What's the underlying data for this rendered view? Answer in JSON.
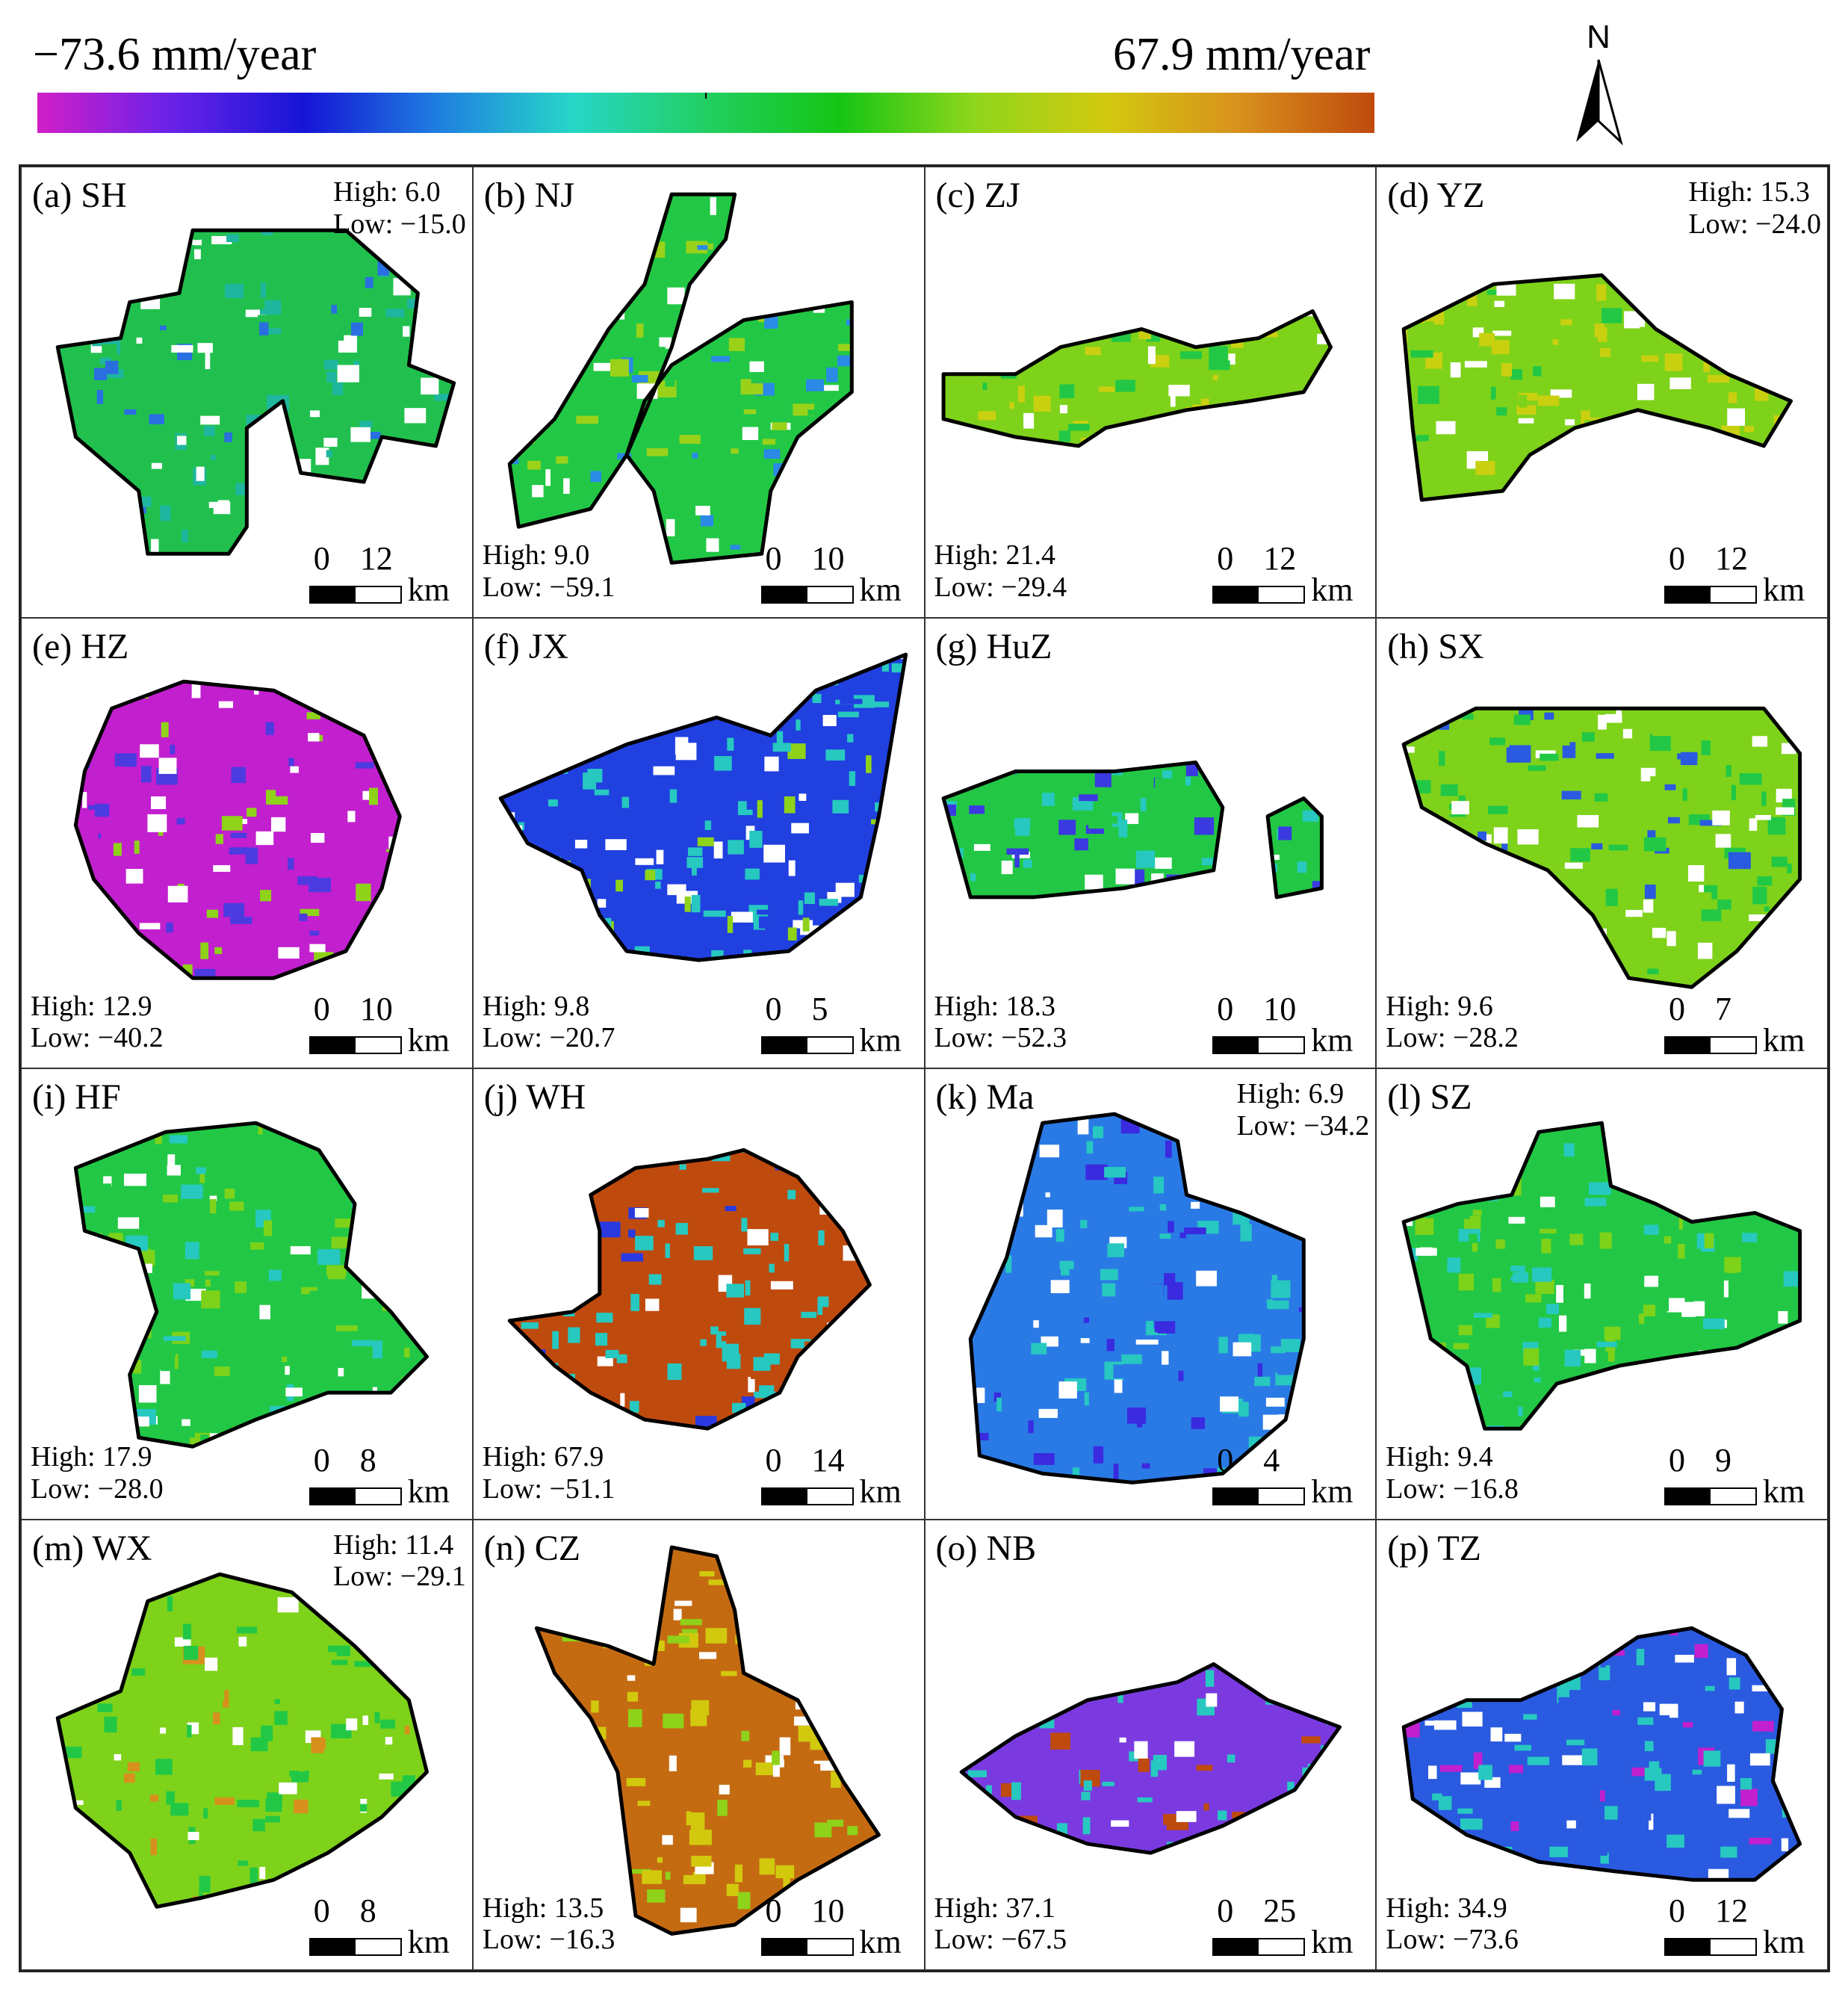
{
  "legend": {
    "min_label": "−73.6 mm/year",
    "max_label": "67.9 mm/year",
    "min_value": -73.6,
    "max_value": 67.9,
    "colors": [
      "#d01fc7",
      "#6a22e8",
      "#1515d6",
      "#1f7fe0",
      "#27d6c8",
      "#22cf63",
      "#15c515",
      "#8ed61c",
      "#d2c90f",
      "#d8901d",
      "#bf4a0d"
    ]
  },
  "north": {
    "label": "N"
  },
  "scale_unit": "km",
  "panels": [
    {
      "label": "(a) SH",
      "high": "High: 6.0",
      "low": "Low: −15.0",
      "scale": "12",
      "stats_pos": "tr",
      "colors": [
        "#21c04e",
        "#1fb6a0",
        "#2a6fe0"
      ]
    },
    {
      "label": "(b) NJ",
      "high": "High: 9.0",
      "low": "Low: −59.1",
      "scale": "10",
      "stats_pos": "bl",
      "colors": [
        "#22c845",
        "#9ad21a",
        "#2a8ae6"
      ]
    },
    {
      "label": "(c) ZJ",
      "high": "High: 21.4",
      "low": "Low: −29.4",
      "scale": "12",
      "stats_pos": "bl",
      "colors": [
        "#7ed21a",
        "#c9d010",
        "#22c845"
      ]
    },
    {
      "label": "(d) YZ",
      "high": "High: 15.3",
      "low": "Low: −24.0",
      "scale": "12",
      "stats_pos": "tr",
      "colors": [
        "#7ed21a",
        "#c9d010",
        "#22c845"
      ]
    },
    {
      "label": "(e) HZ",
      "high": "High: 12.9",
      "low": "Low: −40.2",
      "scale": "10",
      "stats_pos": "bl",
      "colors": [
        "#c21fcf",
        "#4c3be0",
        "#8ed21a"
      ]
    },
    {
      "label": "(f) JX",
      "high": "High: 9.8",
      "low": "Low: −20.7",
      "scale": "5",
      "stats_pos": "bl",
      "colors": [
        "#2140e0",
        "#27c8c0",
        "#8ed21a"
      ]
    },
    {
      "label": "(g) HuZ",
      "high": "High: 18.3",
      "low": "Low: −52.3",
      "scale": "10",
      "stats_pos": "bl",
      "colors": [
        "#22c845",
        "#27c8c0",
        "#3a3ae0"
      ]
    },
    {
      "label": "(h) SX",
      "high": "High: 9.6",
      "low": "Low: −28.2",
      "scale": "7",
      "stats_pos": "bl",
      "colors": [
        "#7ed21a",
        "#22c845",
        "#2a5ae0"
      ]
    },
    {
      "label": "(i) HF",
      "high": "High: 17.9",
      "low": "Low: −28.0",
      "scale": "8",
      "stats_pos": "bl",
      "colors": [
        "#22c845",
        "#7ed21a",
        "#27c8c0"
      ]
    },
    {
      "label": "(j) WH",
      "high": "High: 67.9",
      "low": "Low: −51.1",
      "scale": "14",
      "stats_pos": "bl",
      "colors": [
        "#bf4a0d",
        "#27c8c0",
        "#2a3ae0"
      ]
    },
    {
      "label": "(k) Ma",
      "high": "High: 6.9",
      "low": "Low: −34.2",
      "scale": "4",
      "stats_pos": "tr",
      "colors": [
        "#2a7ae6",
        "#27c8c0",
        "#3a2ae0"
      ]
    },
    {
      "label": "(l) SZ",
      "high": "High: 9.4",
      "low": "Low: −16.8",
      "scale": "9",
      "stats_pos": "bl",
      "colors": [
        "#22c845",
        "#27c8c0",
        "#7ed21a"
      ]
    },
    {
      "label": "(m) WX",
      "high": "High: 11.4",
      "low": "Low: −29.1",
      "scale": "8",
      "stats_pos": "tr",
      "colors": [
        "#7ed21a",
        "#22c845",
        "#d8901d"
      ]
    },
    {
      "label": "(n) CZ",
      "high": "High: 13.5",
      "low": "Low: −16.3",
      "scale": "10",
      "stats_pos": "bl",
      "colors": [
        "#c46b12",
        "#d2c90f",
        "#8ed21a"
      ]
    },
    {
      "label": "(o) NB",
      "high": "High: 37.1",
      "low": "Low: −67.5",
      "scale": "25",
      "stats_pos": "bl",
      "colors": [
        "#7a3ae0",
        "#27c8c0",
        "#bf4a0d"
      ]
    },
    {
      "label": "(p) TZ",
      "high": "High: 34.9",
      "low": "Low: −73.6",
      "scale": "12",
      "stats_pos": "bl",
      "colors": [
        "#2a5ae0",
        "#27c8c0",
        "#c21fcf"
      ]
    }
  ]
}
